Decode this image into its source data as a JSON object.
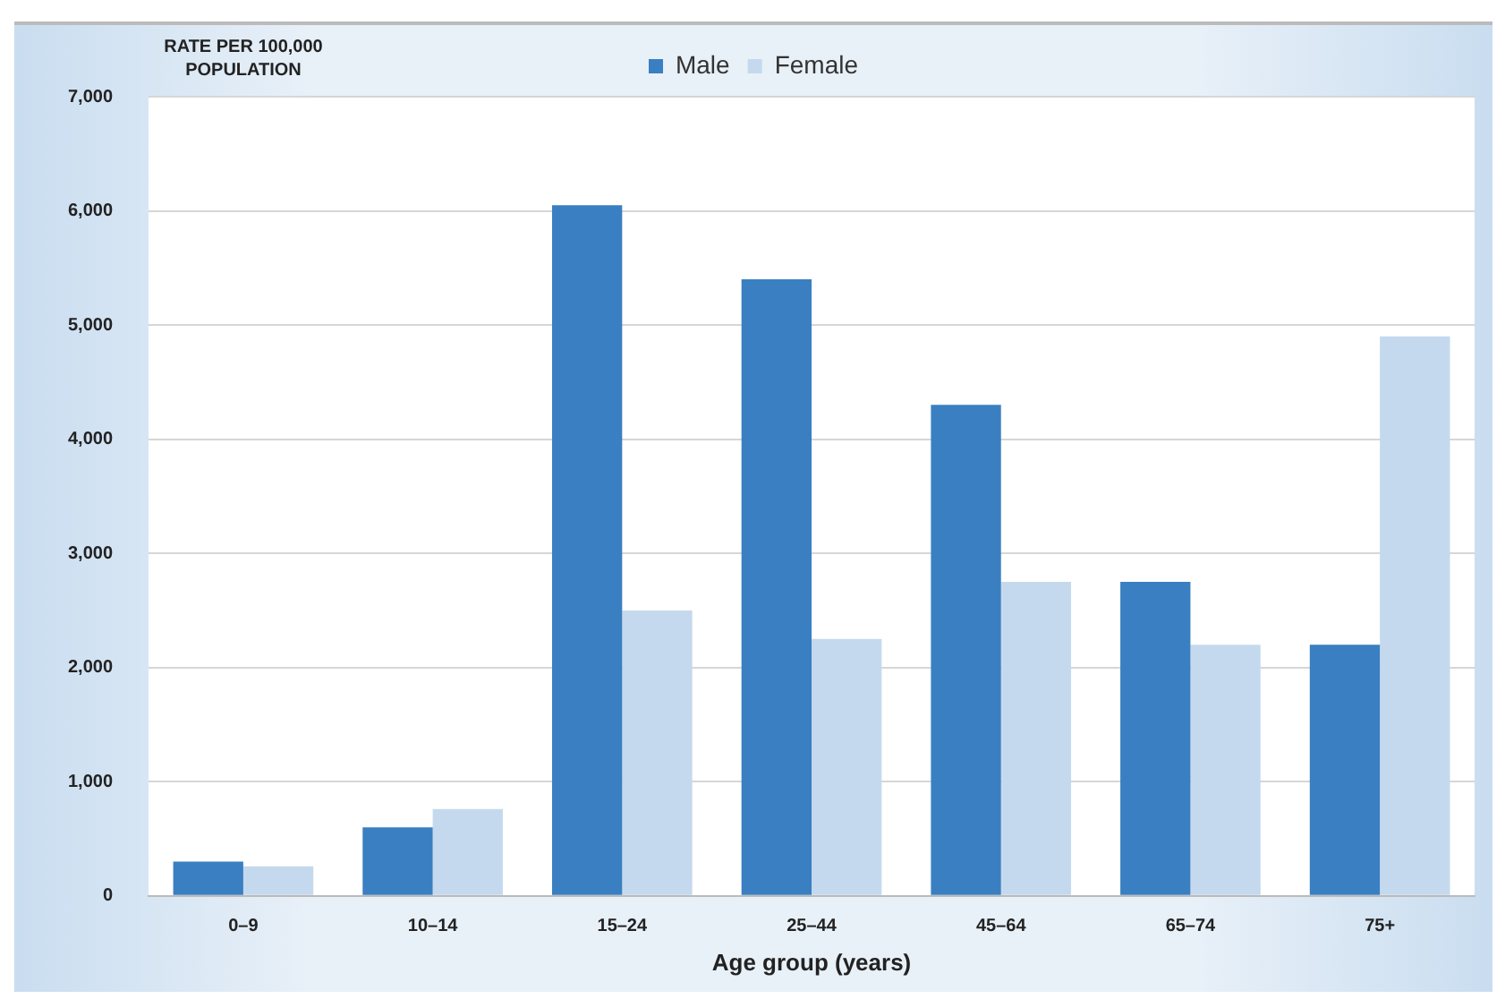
{
  "chart_data": {
    "type": "bar",
    "ylabel": "RATE PER 100,000 POPULATION",
    "xlabel": "Age group (years)",
    "categories": [
      "0–9",
      "10–14",
      "15–24",
      "25–44",
      "45–64",
      "65–74",
      "75+"
    ],
    "series": [
      {
        "name": "Male",
        "color": "#3a7fc1",
        "values": [
          300,
          600,
          6050,
          5400,
          4300,
          2750,
          2200
        ]
      },
      {
        "name": "Female",
        "color": "#c5d9ee",
        "values": [
          260,
          760,
          2500,
          2250,
          2750,
          2200,
          4900
        ]
      }
    ],
    "ylim": [
      0,
      7000
    ],
    "yticks": [
      0,
      {
        "value": 1000,
        "label": "1,000"
      },
      {
        "value": 2000,
        "label": "2,000"
      },
      {
        "value": 3000,
        "label": "3,000"
      },
      {
        "value": 4000,
        "label": "4,000"
      },
      {
        "value": 5000,
        "label": "5,000"
      },
      {
        "value": 6000,
        "label": "6,000"
      },
      {
        "value": 7000,
        "label": "7,000"
      }
    ],
    "grid": "y",
    "legend": "top"
  }
}
